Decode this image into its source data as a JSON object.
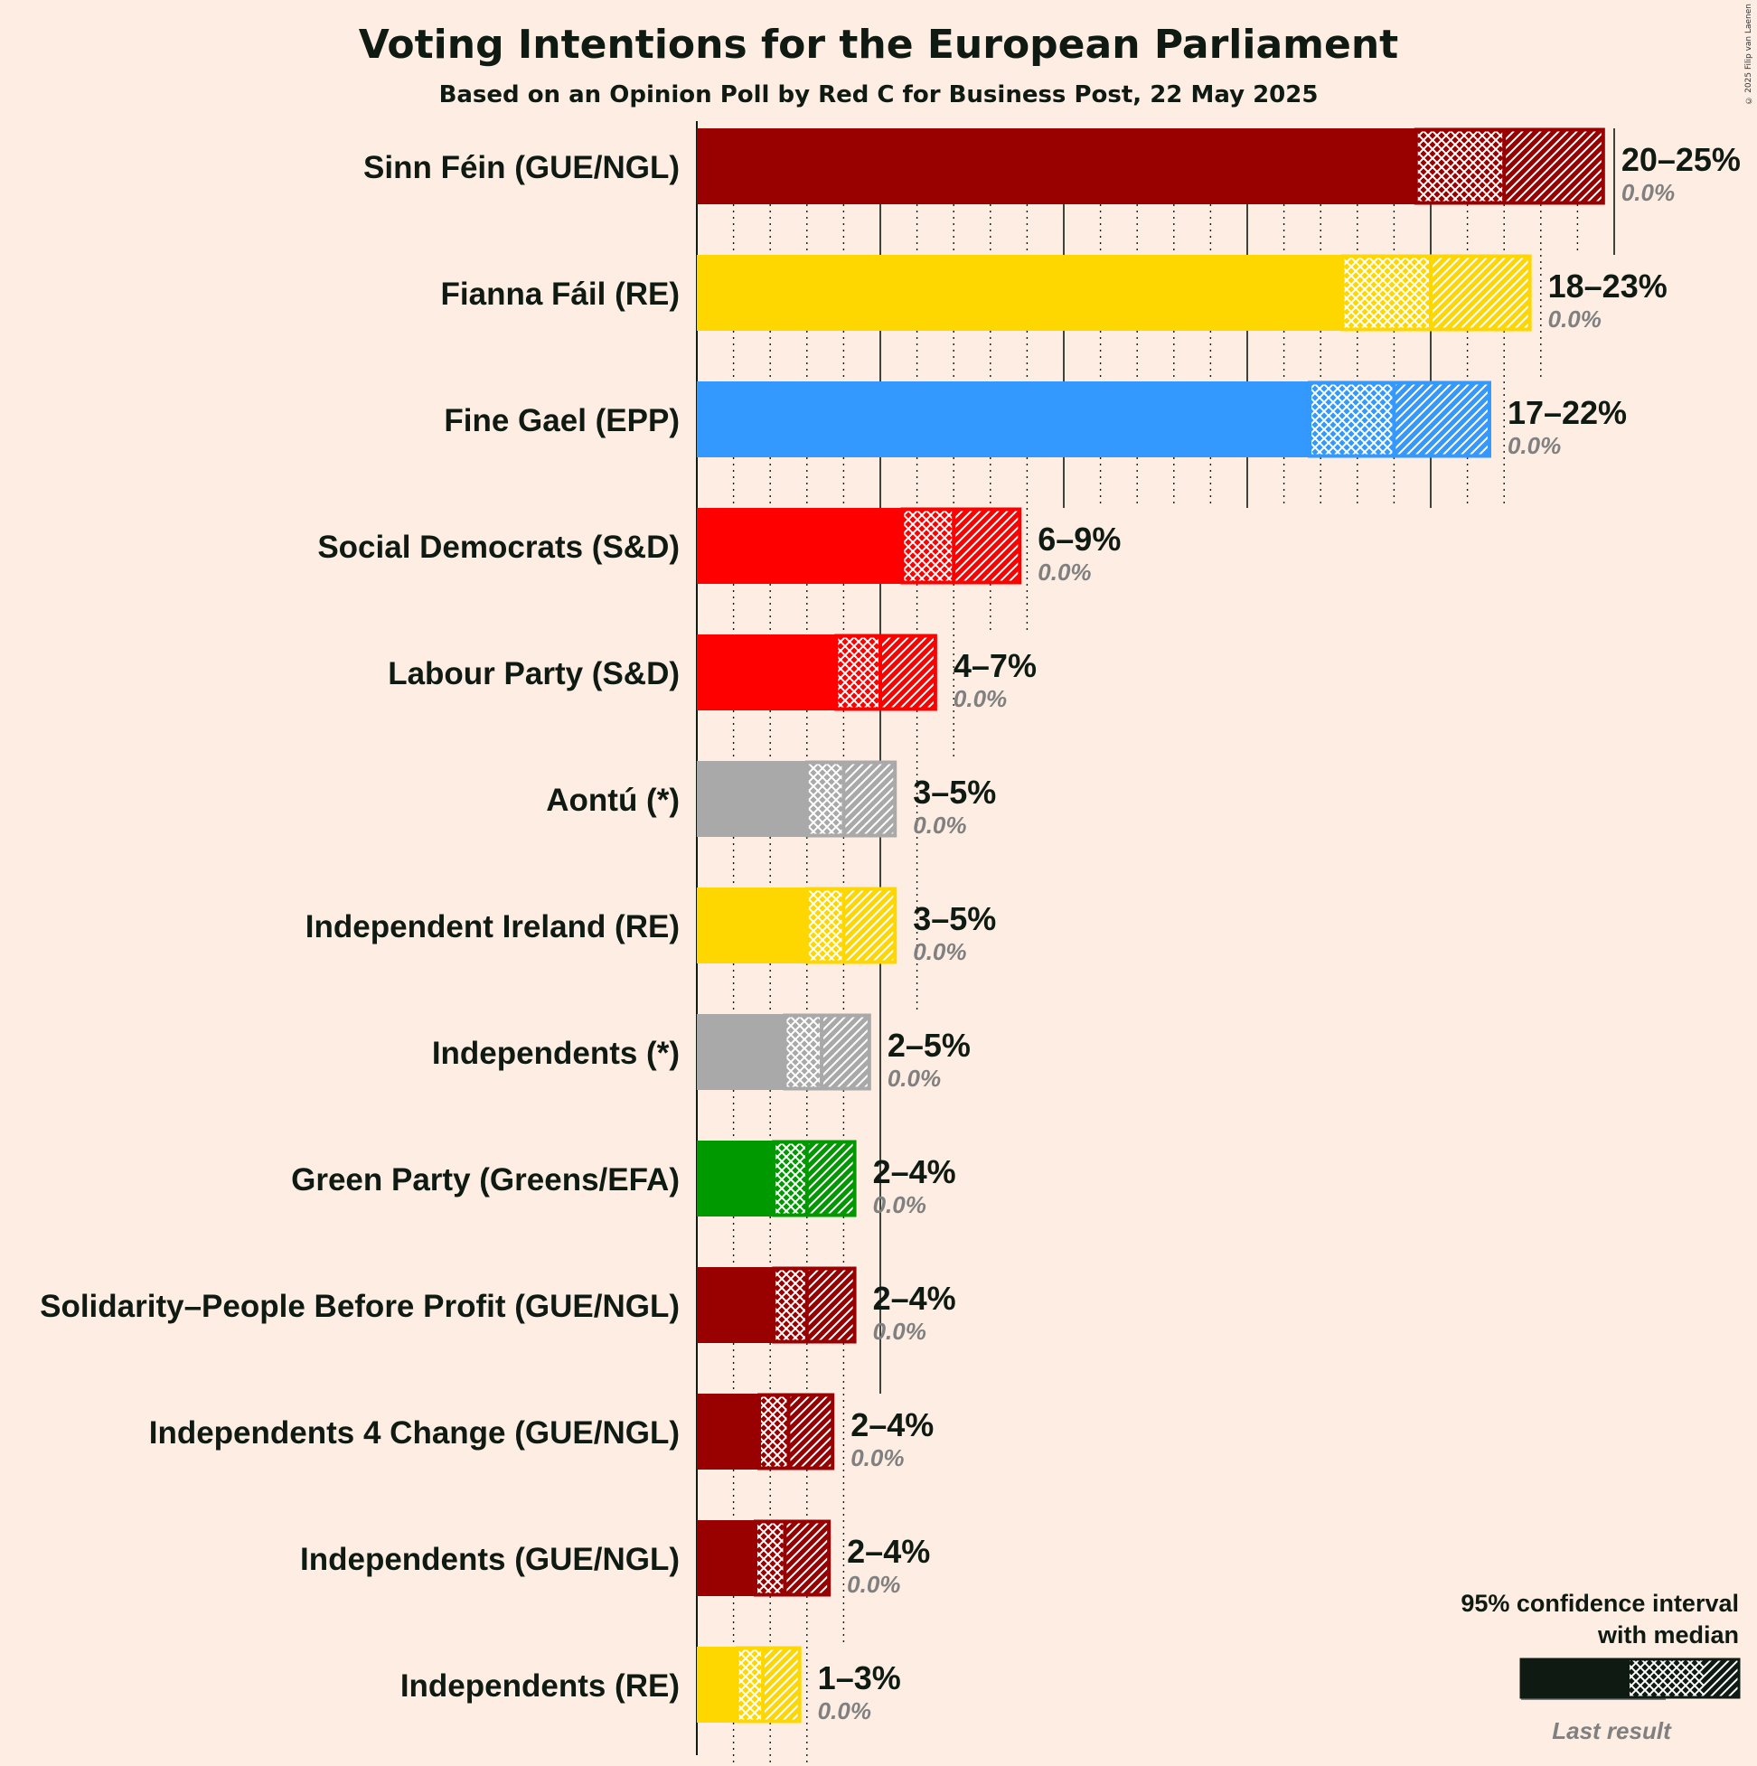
{
  "title": "Voting Intentions for the European Parliament",
  "subtitle": "Based on an Opinion Poll by Red C for Business Post, 22 May 2025",
  "copyright": "© 2025 Filip van Laenen",
  "legend": {
    "line1": "95% confidence interval",
    "line2": "with median",
    "last_result": "Last result"
  },
  "colors": {
    "background": "#FDEDE3",
    "text": "#0E1A12",
    "last_result_text": "#808080"
  },
  "chart_data": {
    "type": "bar",
    "orientation": "horizontal",
    "unit": "%",
    "xlim": [
      0,
      25
    ],
    "grid": "vertical lines every 1%, solid every 5%",
    "categories": [
      "Sinn Féin (GUE/NGL)",
      "Fianna Fáil (RE)",
      "Fine Gael (EPP)",
      "Social Democrats (S&D)",
      "Labour Party (S&D)",
      "Aontú (*)",
      "Independent Ireland (RE)",
      "Independents (*)",
      "Green Party (Greens/EFA)",
      "Solidarity–People Before Profit (GUE/NGL)",
      "Independents 4 Change (GUE/NGL)",
      "Independents (GUE/NGL)",
      "Independents (RE)"
    ],
    "series": [
      {
        "party": "Sinn Féin (GUE/NGL)",
        "color": "#990000",
        "ci_low": 19.6,
        "median": 22.0,
        "ci_high": 24.7,
        "range_label": "20–25%",
        "last_result": 0.0,
        "last_label": "0.0%"
      },
      {
        "party": "Fianna Fáil (RE)",
        "color": "#FFD700",
        "ci_low": 17.6,
        "median": 20.0,
        "ci_high": 22.7,
        "range_label": "18–23%",
        "last_result": 0.0,
        "last_label": "0.0%"
      },
      {
        "party": "Fine Gael (EPP)",
        "color": "#3399FF",
        "ci_low": 16.7,
        "median": 19.0,
        "ci_high": 21.6,
        "range_label": "17–22%",
        "last_result": 0.0,
        "last_label": "0.0%"
      },
      {
        "party": "Social Democrats (S&D)",
        "color": "#FF0000",
        "ci_low": 5.6,
        "median": 7.0,
        "ci_high": 8.8,
        "range_label": "6–9%",
        "last_result": 0.0,
        "last_label": "0.0%"
      },
      {
        "party": "Labour Party (S&D)",
        "color": "#FF0000",
        "ci_low": 3.8,
        "median": 5.0,
        "ci_high": 6.5,
        "range_label": "4–7%",
        "last_result": 0.0,
        "last_label": "0.0%"
      },
      {
        "party": "Aontú (*)",
        "color": "#A9A9A9",
        "ci_low": 3.0,
        "median": 4.0,
        "ci_high": 5.4,
        "range_label": "3–5%",
        "last_result": 0.0,
        "last_label": "0.0%"
      },
      {
        "party": "Independent Ireland (RE)",
        "color": "#FFD700",
        "ci_low": 3.0,
        "median": 4.0,
        "ci_high": 5.4,
        "range_label": "3–5%",
        "last_result": 0.0,
        "last_label": "0.0%"
      },
      {
        "party": "Independents (*)",
        "color": "#A9A9A9",
        "ci_low": 2.4,
        "median": 3.4,
        "ci_high": 4.7,
        "range_label": "2–5%",
        "last_result": 0.0,
        "last_label": "0.0%"
      },
      {
        "party": "Green Party (Greens/EFA)",
        "color": "#009900",
        "ci_low": 2.1,
        "median": 3.0,
        "ci_high": 4.3,
        "range_label": "2–4%",
        "last_result": 0.0,
        "last_label": "0.0%"
      },
      {
        "party": "Solidarity–People Before Profit (GUE/NGL)",
        "color": "#990000",
        "ci_low": 2.1,
        "median": 3.0,
        "ci_high": 4.3,
        "range_label": "2–4%",
        "last_result": 0.0,
        "last_label": "0.0%"
      },
      {
        "party": "Independents 4 Change (GUE/NGL)",
        "color": "#990000",
        "ci_low": 1.7,
        "median": 2.5,
        "ci_high": 3.7,
        "range_label": "2–4%",
        "last_result": 0.0,
        "last_label": "0.0%"
      },
      {
        "party": "Independents (GUE/NGL)",
        "color": "#990000",
        "ci_low": 1.6,
        "median": 2.4,
        "ci_high": 3.6,
        "range_label": "2–4%",
        "last_result": 0.0,
        "last_label": "0.0%"
      },
      {
        "party": "Independents (RE)",
        "color": "#FFD700",
        "ci_low": 1.1,
        "median": 1.8,
        "ci_high": 2.8,
        "range_label": "1–3%",
        "last_result": 0.0,
        "last_label": "0.0%"
      }
    ]
  }
}
